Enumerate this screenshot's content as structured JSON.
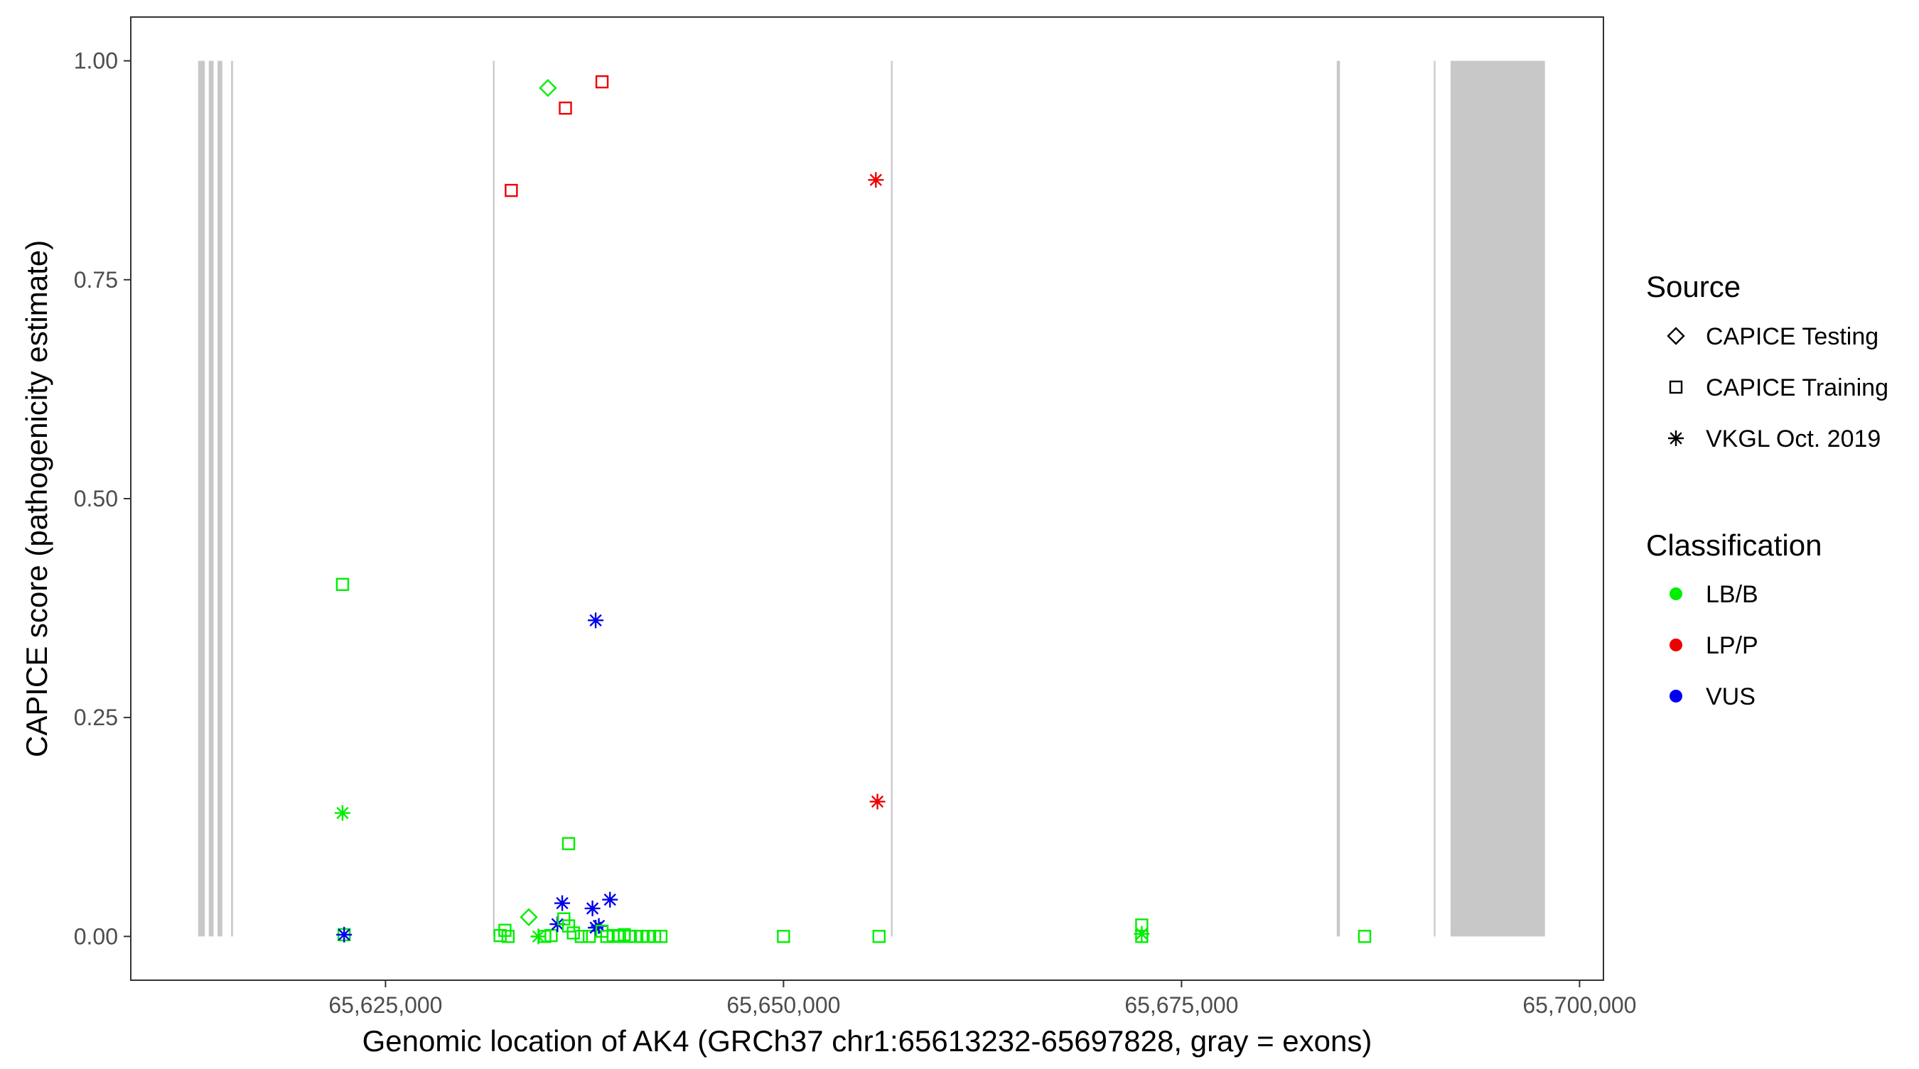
{
  "chart_data": {
    "type": "scatter",
    "title": "",
    "xlabel": "Genomic location of AK4 (GRCh37 chr1:65613232-65697828, gray = exons)",
    "ylabel": "CAPICE score (pathogenicity estimate)",
    "xlim": [
      65609000,
      65701500
    ],
    "ylim": [
      -0.05,
      1.05
    ],
    "x_ticks": [
      65625000,
      65650000,
      65675000,
      65700000
    ],
    "x_tick_labels": [
      "65,625,000",
      "65,650,000",
      "65,675,000",
      "65,700,000"
    ],
    "y_ticks": [
      0,
      0.25,
      0.5,
      0.75,
      1.0
    ],
    "y_tick_labels": [
      "0.00",
      "0.25",
      "0.50",
      "0.75",
      "1.00"
    ],
    "grid": false,
    "exons": [
      [
        65613232,
        65613650
      ],
      [
        65613900,
        65614200
      ],
      [
        65614450,
        65614750
      ],
      [
        65615300,
        65615420
      ],
      [
        65631750,
        65631850
      ],
      [
        65656750,
        65656850
      ],
      [
        65684750,
        65684950
      ],
      [
        65690850,
        65690950
      ],
      [
        65691900,
        65697828
      ]
    ],
    "exon_color": "#c8c8c8",
    "legend_placement": "right",
    "legends": [
      {
        "title": "Source",
        "entries": [
          {
            "label": "CAPICE Testing",
            "shape": "diamond"
          },
          {
            "label": "CAPICE Training",
            "shape": "square"
          },
          {
            "label": "VKGL Oct. 2019",
            "shape": "star"
          }
        ]
      },
      {
        "title": "Classification",
        "entries": [
          {
            "label": "LB/B",
            "color": "#00ee00"
          },
          {
            "label": "LP/P",
            "color": "#ee0000"
          },
          {
            "label": "VUS",
            "color": "#0000ee"
          }
        ]
      }
    ],
    "points": [
      {
        "x": 65635200,
        "y": 0.969,
        "source": "CAPICE Testing",
        "class": "LB/B"
      },
      {
        "x": 65638600,
        "y": 0.976,
        "source": "CAPICE Training",
        "class": "LP/P"
      },
      {
        "x": 65636300,
        "y": 0.946,
        "source": "CAPICE Training",
        "class": "LP/P"
      },
      {
        "x": 65632900,
        "y": 0.852,
        "source": "CAPICE Training",
        "class": "LP/P"
      },
      {
        "x": 65655800,
        "y": 0.864,
        "source": "VKGL Oct. 2019",
        "class": "LP/P"
      },
      {
        "x": 65655900,
        "y": 0.154,
        "source": "VKGL Oct. 2019",
        "class": "LP/P"
      },
      {
        "x": 65622300,
        "y": 0.402,
        "source": "CAPICE Training",
        "class": "LB/B"
      },
      {
        "x": 65638200,
        "y": 0.361,
        "source": "VKGL Oct. 2019",
        "class": "VUS"
      },
      {
        "x": 65622300,
        "y": 0.141,
        "source": "VKGL Oct. 2019",
        "class": "LB/B"
      },
      {
        "x": 65636500,
        "y": 0.106,
        "source": "CAPICE Training",
        "class": "LB/B"
      },
      {
        "x": 65622400,
        "y": 0.002,
        "source": "CAPICE Training",
        "class": "LB/B"
      },
      {
        "x": 65622400,
        "y": 0.002,
        "source": "VKGL Oct. 2019",
        "class": "VUS"
      },
      {
        "x": 65632200,
        "y": 0.001,
        "source": "CAPICE Training",
        "class": "LB/B"
      },
      {
        "x": 65632500,
        "y": 0.007,
        "source": "CAPICE Training",
        "class": "LB/B"
      },
      {
        "x": 65632700,
        "y": 0.0,
        "source": "CAPICE Training",
        "class": "LB/B"
      },
      {
        "x": 65634000,
        "y": 0.022,
        "source": "CAPICE Testing",
        "class": "LB/B"
      },
      {
        "x": 65634600,
        "y": 0.0,
        "source": "VKGL Oct. 2019",
        "class": "LB/B"
      },
      {
        "x": 65635000,
        "y": 0.0,
        "source": "CAPICE Training",
        "class": "LB/B"
      },
      {
        "x": 65635400,
        "y": 0.001,
        "source": "CAPICE Training",
        "class": "LB/B"
      },
      {
        "x": 65635800,
        "y": 0.014,
        "source": "VKGL Oct. 2019",
        "class": "VUS"
      },
      {
        "x": 65636100,
        "y": 0.038,
        "source": "VKGL Oct. 2019",
        "class": "VUS"
      },
      {
        "x": 65636200,
        "y": 0.02,
        "source": "CAPICE Training",
        "class": "LB/B"
      },
      {
        "x": 65636500,
        "y": 0.012,
        "source": "CAPICE Training",
        "class": "LB/B"
      },
      {
        "x": 65636800,
        "y": 0.004,
        "source": "CAPICE Training",
        "class": "LB/B"
      },
      {
        "x": 65637300,
        "y": 0.0,
        "source": "CAPICE Training",
        "class": "LB/B"
      },
      {
        "x": 65637800,
        "y": 0.0,
        "source": "CAPICE Training",
        "class": "LB/B"
      },
      {
        "x": 65638000,
        "y": 0.032,
        "source": "VKGL Oct. 2019",
        "class": "VUS"
      },
      {
        "x": 65638200,
        "y": 0.01,
        "source": "VKGL Oct. 2019",
        "class": "VUS"
      },
      {
        "x": 65638400,
        "y": 0.012,
        "source": "VKGL Oct. 2019",
        "class": "VUS"
      },
      {
        "x": 65638600,
        "y": 0.006,
        "source": "CAPICE Training",
        "class": "LB/B"
      },
      {
        "x": 65638900,
        "y": 0.0,
        "source": "CAPICE Training",
        "class": "LB/B"
      },
      {
        "x": 65639100,
        "y": 0.042,
        "source": "VKGL Oct. 2019",
        "class": "VUS"
      },
      {
        "x": 65639300,
        "y": 0.001,
        "source": "CAPICE Training",
        "class": "LB/B"
      },
      {
        "x": 65639700,
        "y": 0.0,
        "source": "CAPICE Training",
        "class": "LB/B"
      },
      {
        "x": 65640000,
        "y": 0.002,
        "source": "CAPICE Training",
        "class": "LB/B"
      },
      {
        "x": 65640300,
        "y": 0.0,
        "source": "CAPICE Training",
        "class": "LB/B"
      },
      {
        "x": 65640700,
        "y": 0.0,
        "source": "CAPICE Training",
        "class": "LB/B"
      },
      {
        "x": 65641100,
        "y": 0.0,
        "source": "CAPICE Training",
        "class": "LB/B"
      },
      {
        "x": 65641500,
        "y": 0.0,
        "source": "CAPICE Training",
        "class": "LB/B"
      },
      {
        "x": 65641900,
        "y": 0.0,
        "source": "CAPICE Training",
        "class": "LB/B"
      },
      {
        "x": 65642300,
        "y": 0.0,
        "source": "CAPICE Training",
        "class": "LB/B"
      },
      {
        "x": 65650000,
        "y": 0.0,
        "source": "CAPICE Training",
        "class": "LB/B"
      },
      {
        "x": 65656000,
        "y": 0.0,
        "source": "CAPICE Training",
        "class": "LB/B"
      },
      {
        "x": 65672500,
        "y": 0.013,
        "source": "CAPICE Training",
        "class": "LB/B"
      },
      {
        "x": 65672500,
        "y": 0.003,
        "source": "VKGL Oct. 2019",
        "class": "LB/B"
      },
      {
        "x": 65672500,
        "y": 0.0,
        "source": "CAPICE Training",
        "class": "LB/B"
      },
      {
        "x": 65686500,
        "y": 0.0,
        "source": "CAPICE Training",
        "class": "LB/B"
      }
    ]
  }
}
